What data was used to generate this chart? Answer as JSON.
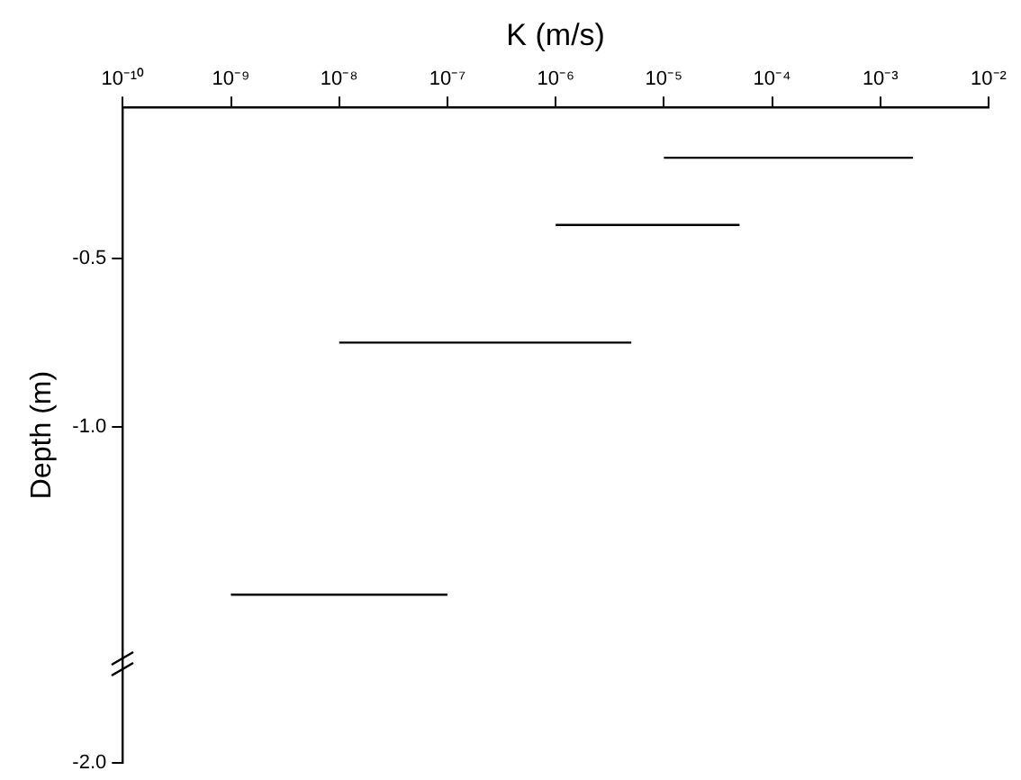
{
  "chart_data": {
    "type": "line",
    "xlabel": "K (m/s)",
    "ylabel": "Depth (m)",
    "log": "x",
    "marker": "none",
    "line_style": "solid",
    "grid": false,
    "series": [
      {
        "color": "#000000",
        "x": [
          1e-05,
          0.002
        ],
        "values": [
          -0.2,
          -0.2
        ]
      },
      {
        "color": "#000000",
        "x": [
          1e-06,
          5e-05
        ],
        "values": [
          -0.4,
          -0.4
        ]
      },
      {
        "color": "#000000",
        "x": [
          1e-08,
          5e-06
        ],
        "values": [
          -0.75,
          -0.75
        ]
      },
      {
        "color": "#000000",
        "x": [
          1e-09,
          1e-07
        ],
        "values": [
          -1.5,
          -1.5
        ]
      }
    ],
    "xlim": [
      1e-10,
      0.01
    ],
    "xticks": [
      {
        "value": 1e-10,
        "label": "10⁻¹⁰"
      },
      {
        "value": 1e-09,
        "label": "10⁻⁹"
      },
      {
        "value": 1e-08,
        "label": "10⁻⁸"
      },
      {
        "value": 1e-07,
        "label": "10⁻⁷"
      },
      {
        "value": 1e-06,
        "label": "10⁻⁶"
      },
      {
        "value": 1e-05,
        "label": "10⁻⁵"
      },
      {
        "value": 0.0001,
        "label": "10⁻⁴"
      },
      {
        "value": 0.001,
        "label": "10⁻³"
      },
      {
        "value": 0.01,
        "label": "10⁻²"
      }
    ],
    "ylim": [
      -2.0,
      -0.05
    ],
    "yticks": [
      {
        "value": -0.5,
        "label": "-0.5"
      },
      {
        "value": -1.0,
        "label": "-1.0"
      },
      {
        "value": -2.0,
        "label": "-2.0"
      }
    ]
  }
}
